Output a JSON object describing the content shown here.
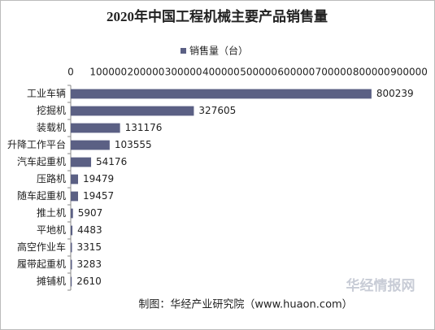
{
  "chart_data": {
    "type": "bar",
    "orientation": "horizontal",
    "title": "2020年中国工程机械主要产品销售量",
    "categories": [
      "工业车辆",
      "挖掘机",
      "装载机",
      "升降工作平台",
      "汽车起重机",
      "压路机",
      "随车起重机",
      "推土机",
      "平地机",
      "高空作业车",
      "履带起重机",
      "摊铺机"
    ],
    "series": [
      {
        "name": "销售量（台）",
        "color": "#5b6084",
        "values": [
          800239,
          327605,
          131176,
          103555,
          54176,
          19479,
          19457,
          5907,
          4483,
          3315,
          3283,
          2610
        ]
      }
    ],
    "xlim": [
      0,
      900000
    ],
    "xticks": [
      0,
      100000,
      200000,
      300000,
      400000,
      500000,
      600000,
      700000,
      800000,
      900000
    ],
    "grid": false,
    "legend": "top",
    "source": "制图：华经产业研究院（www.huaon.com）",
    "watermark": "华经情报网"
  }
}
